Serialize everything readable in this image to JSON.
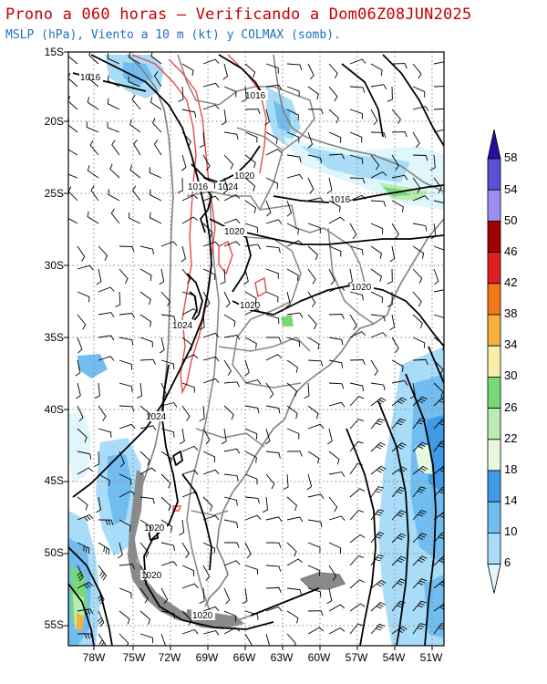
{
  "header": {
    "title": "Prono a 060 horas – Verificando a Dom06Z08JUN2025",
    "subtitle": "MSLP (hPa), Viento a 10 m (kt) y COLMAX (somb)."
  },
  "map": {
    "lat_labels": [
      "15S",
      "20S",
      "25S",
      "30S",
      "35S",
      "40S",
      "45S",
      "50S",
      "55S"
    ],
    "lon_labels": [
      "78W",
      "75W",
      "72W",
      "69W",
      "66W",
      "63W",
      "60W",
      "57W",
      "54W",
      "51W"
    ],
    "isobar_labels": [
      "1016",
      "1016",
      "1016",
      "1016",
      "1020",
      "1024",
      "1020",
      "1020",
      "1020",
      "1024",
      "1024",
      "1020",
      "1020",
      "1020"
    ],
    "colors": {
      "isobar": "#000000",
      "coastline": "#808080",
      "border": "#8a8a8a",
      "barb": "#000000",
      "terrain_contour": "#e84a4a"
    }
  },
  "colorbar": {
    "labels": [
      "58",
      "54",
      "50",
      "46",
      "42",
      "38",
      "34",
      "30",
      "26",
      "22",
      "18",
      "14",
      "10",
      "6"
    ],
    "colors": [
      "#2a0d9e",
      "#5a4fd6",
      "#9b8ef0",
      "#a00000",
      "#e02020",
      "#f07a1a",
      "#f6b23c",
      "#f8f0a8",
      "#78d878",
      "#b8ecb0",
      "#e6f8e0",
      "#3f9be8",
      "#72bdf0",
      "#a8dcf8",
      "#dff6fb"
    ]
  }
}
